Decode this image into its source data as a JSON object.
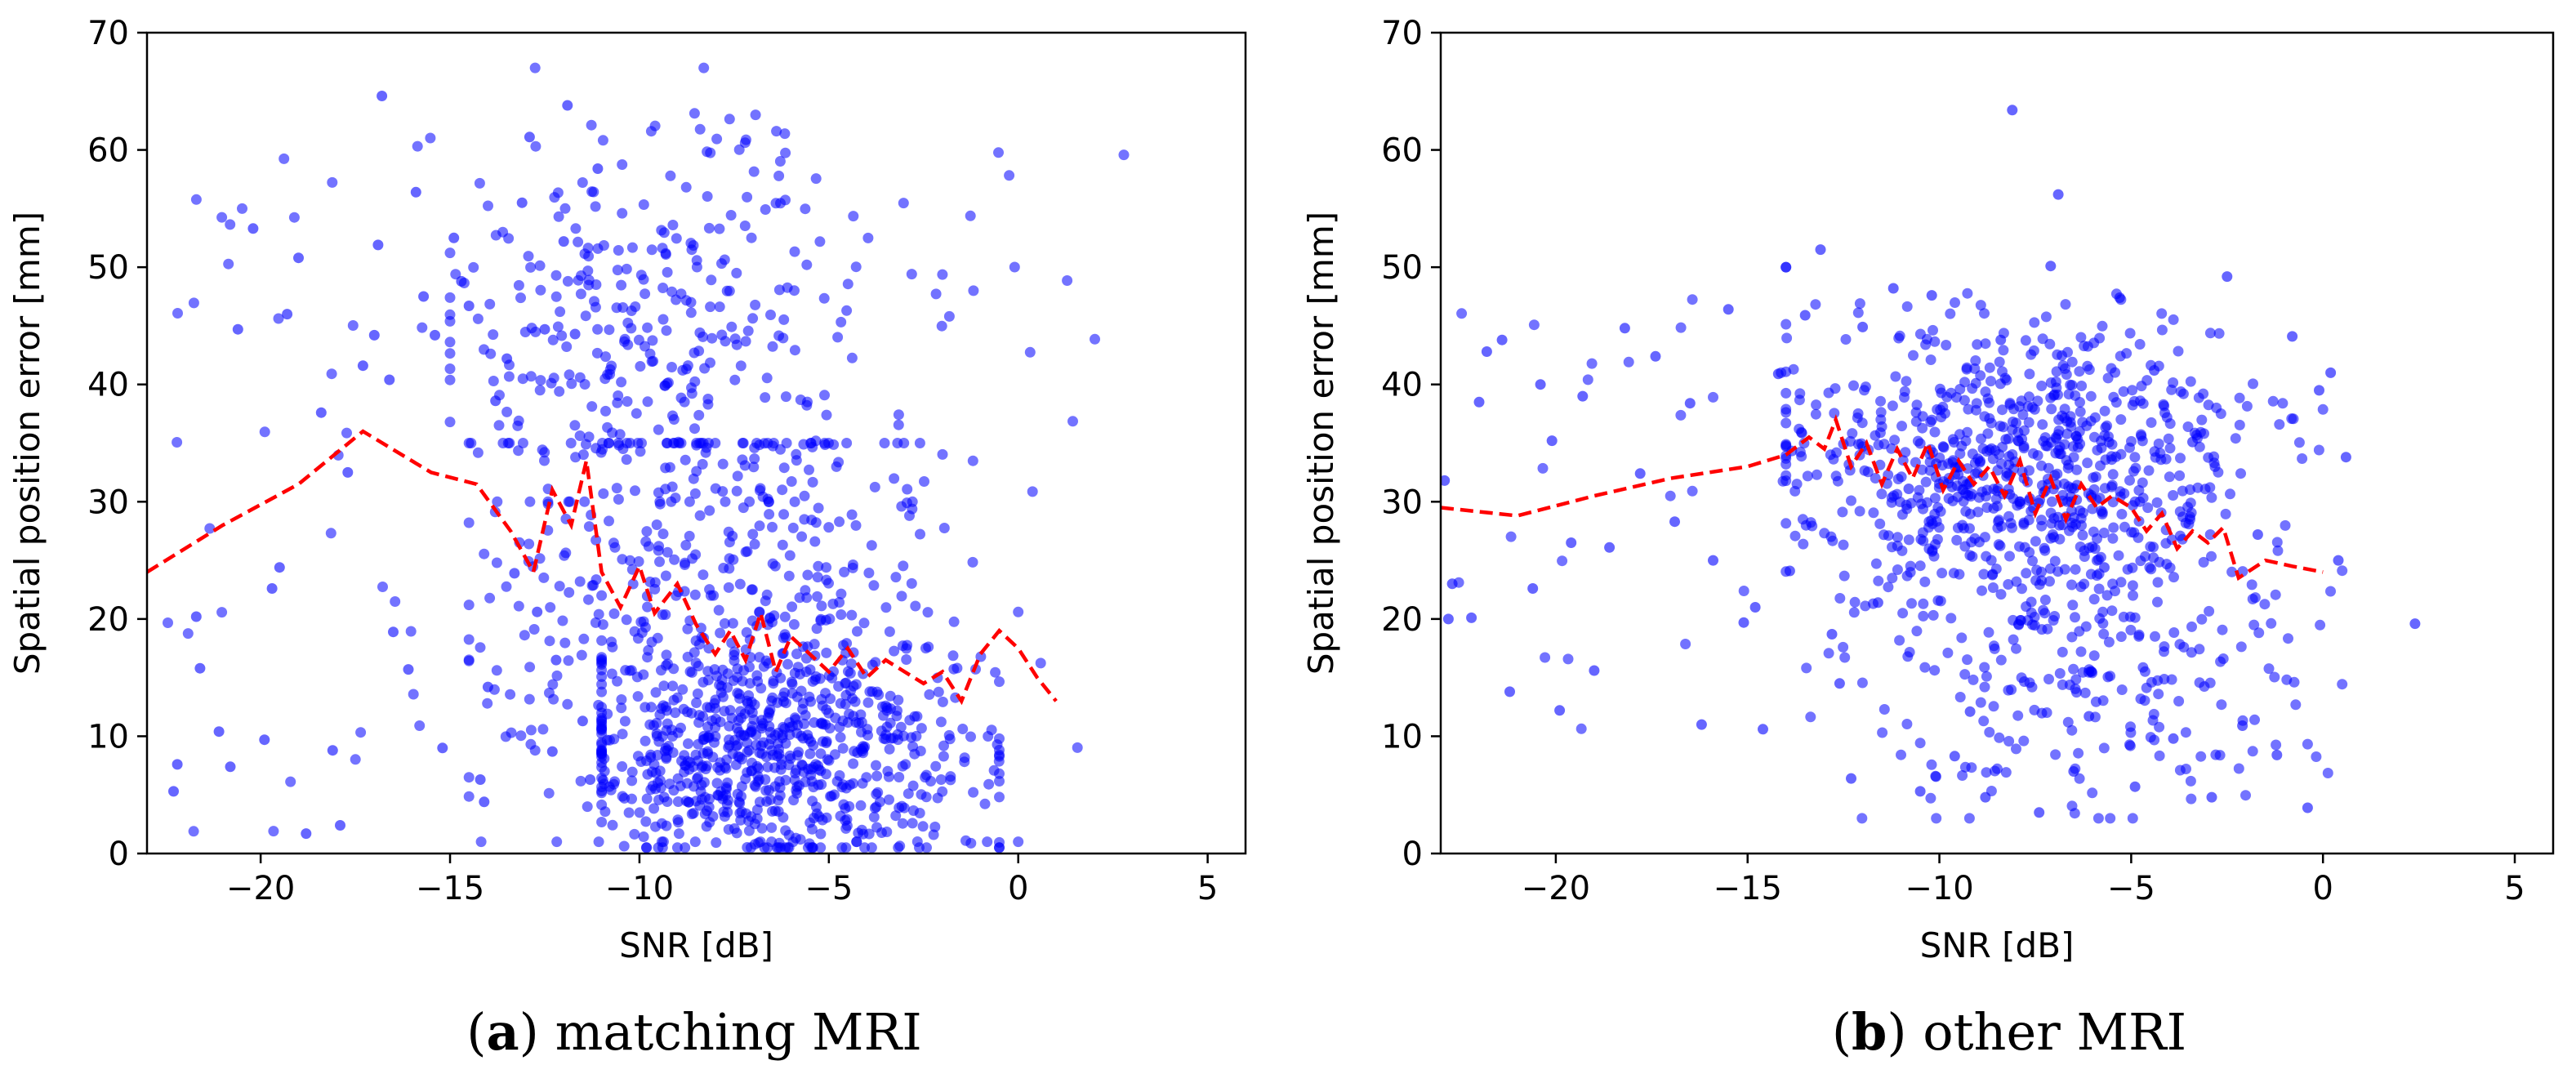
{
  "chart_data": [
    {
      "type": "scatter",
      "caption_letter": "a",
      "caption_text": "matching MRI",
      "xlabel": "SNR [dB]",
      "ylabel": "Spatial position error [mm]",
      "xlim": [
        -23,
        6
      ],
      "ylim": [
        0,
        70
      ],
      "xticks": [
        -20,
        -15,
        -10,
        -5,
        0,
        5
      ],
      "yticks": [
        0,
        10,
        20,
        30,
        40,
        50,
        60,
        70
      ],
      "xtick_labels": [
        "−20",
        "−15",
        "−10",
        "−5",
        "0",
        "5"
      ],
      "ytick_labels": [
        "0",
        "10",
        "20",
        "30",
        "40",
        "50",
        "60",
        "70"
      ],
      "point_color": "#0000ff",
      "trend_color": "#ff0000",
      "scatter_sample": [
        [
          -22.3,
          5.3
        ],
        [
          -22.2,
          7.6
        ],
        [
          -21.7,
          20.2
        ],
        [
          -21.6,
          15.8
        ],
        [
          -21.1,
          10.4
        ],
        [
          -20.8,
          7.4
        ],
        [
          -20.6,
          44.7
        ],
        [
          -20.2,
          53.3
        ],
        [
          -19.9,
          9.7
        ],
        [
          -19.7,
          22.6
        ],
        [
          -19.5,
          24.4
        ],
        [
          -19.3,
          46.0
        ],
        [
          -19.0,
          50.8
        ],
        [
          -18.8,
          1.7
        ],
        [
          -18.4,
          37.6
        ],
        [
          -18.1,
          8.8
        ],
        [
          -17.9,
          2.4
        ],
        [
          -17.7,
          32.5
        ],
        [
          -17.3,
          41.6
        ],
        [
          -17.0,
          44.2
        ],
        [
          -16.9,
          51.9
        ],
        [
          -16.8,
          64.6
        ],
        [
          -16.6,
          40.4
        ],
        [
          -16.5,
          18.9
        ],
        [
          -16.1,
          15.7
        ],
        [
          -15.9,
          56.4
        ],
        [
          -15.7,
          47.5
        ],
        [
          -15.4,
          44.2
        ],
        [
          -15.2,
          9.0
        ],
        [
          -14.9,
          52.5
        ],
        [
          -14.7,
          48.8
        ],
        [
          -14.5,
          46.7
        ],
        [
          -14.2,
          6.3
        ],
        [
          -14.1,
          4.4
        ],
        [
          -14.0,
          14.2
        ],
        [
          -13.8,
          38.6
        ],
        [
          -13.5,
          42.2
        ],
        [
          -13.3,
          23.9
        ],
        [
          -13.1,
          55.5
        ],
        [
          -12.9,
          61.1
        ],
        [
          -12.7,
          20.6
        ],
        [
          -12.5,
          44.7
        ],
        [
          -12.3,
          8.7
        ],
        [
          -12.2,
          16.5
        ],
        [
          -12.0,
          52.2
        ],
        [
          -11.9,
          63.8
        ],
        [
          -11.7,
          44.3
        ],
        [
          -11.5,
          11.3
        ],
        [
          -11.3,
          6.3
        ],
        [
          -11.1,
          58.4
        ]
      ],
      "trend_line": [
        [
          -23.0,
          24.0
        ],
        [
          -21.0,
          28.0
        ],
        [
          -19.0,
          31.5
        ],
        [
          -17.3,
          36.0
        ],
        [
          -15.5,
          32.5
        ],
        [
          -14.3,
          31.5
        ],
        [
          -13.4,
          27.5
        ],
        [
          -12.8,
          24.0
        ],
        [
          -12.3,
          31.0
        ],
        [
          -11.8,
          28.0
        ],
        [
          -11.4,
          33.5
        ],
        [
          -11.0,
          24.0
        ],
        [
          -10.5,
          21.0
        ],
        [
          -10.0,
          24.5
        ],
        [
          -9.6,
          20.5
        ],
        [
          -9.0,
          23.0
        ],
        [
          -8.5,
          19.5
        ],
        [
          -8.0,
          17.0
        ],
        [
          -7.6,
          19.0
        ],
        [
          -7.2,
          16.5
        ],
        [
          -6.8,
          20.5
        ],
        [
          -6.4,
          15.5
        ],
        [
          -6.0,
          18.5
        ],
        [
          -5.5,
          17.0
        ],
        [
          -5.0,
          15.5
        ],
        [
          -4.5,
          17.5
        ],
        [
          -4.0,
          15.0
        ],
        [
          -3.5,
          16.5
        ],
        [
          -3.0,
          15.5
        ],
        [
          -2.5,
          14.5
        ],
        [
          -2.0,
          15.5
        ],
        [
          -1.5,
          13.0
        ],
        [
          -1.0,
          17.0
        ],
        [
          -0.5,
          19.0
        ],
        [
          0.0,
          17.5
        ],
        [
          0.5,
          15.0
        ],
        [
          1.0,
          13.0
        ]
      ]
    },
    {
      "type": "scatter",
      "caption_letter": "b",
      "caption_text": "other MRI",
      "xlabel": "SNR [dB]",
      "ylabel": "Spatial position error [mm]",
      "xlim": [
        -23,
        6
      ],
      "ylim": [
        0,
        70
      ],
      "xticks": [
        -20,
        -15,
        -10,
        -5,
        0,
        5
      ],
      "yticks": [
        0,
        10,
        20,
        30,
        40,
        50,
        60,
        70
      ],
      "xtick_labels": [
        "−20",
        "−15",
        "−10",
        "−5",
        "0",
        "5"
      ],
      "ytick_labels": [
        "0",
        "10",
        "20",
        "30",
        "40",
        "50",
        "60",
        "70"
      ],
      "point_color": "#0000ff",
      "trend_color": "#ff0000",
      "scatter_sample": [
        [
          -22.9,
          31.8
        ],
        [
          -22.8,
          20.0
        ],
        [
          -22.7,
          23.0
        ],
        [
          -22.2,
          20.1
        ],
        [
          -22.0,
          38.5
        ],
        [
          -21.8,
          42.8
        ],
        [
          -21.4,
          43.8
        ],
        [
          -21.2,
          13.8
        ],
        [
          -20.6,
          22.6
        ],
        [
          -20.4,
          40.0
        ],
        [
          -20.1,
          35.2
        ],
        [
          -19.9,
          12.2
        ],
        [
          -19.6,
          26.5
        ],
        [
          -19.3,
          39.0
        ],
        [
          -19.0,
          15.6
        ],
        [
          -18.6,
          26.1
        ],
        [
          -18.2,
          44.8
        ],
        [
          -17.8,
          32.4
        ],
        [
          -17.4,
          42.4
        ],
        [
          -16.9,
          28.3
        ],
        [
          -16.5,
          38.4
        ],
        [
          -16.2,
          11.0
        ],
        [
          -15.9,
          25.0
        ],
        [
          -15.5,
          46.4
        ],
        [
          -15.1,
          19.7
        ],
        [
          -14.8,
          21.0
        ],
        [
          -14.6,
          10.6
        ],
        [
          -14.2,
          40.9
        ],
        [
          -13.9,
          24.1
        ],
        [
          -13.5,
          45.9
        ],
        [
          -13.1,
          51.5
        ],
        [
          -12.8,
          18.7
        ],
        [
          -12.6,
          14.5
        ],
        [
          -12.3,
          6.4
        ],
        [
          -12.0,
          44.9
        ],
        [
          -11.6,
          21.4
        ],
        [
          -11.2,
          48.2
        ],
        [
          -10.8,
          31.1
        ],
        [
          -10.5,
          5.3
        ],
        [
          -10.2,
          47.6
        ],
        [
          -9.9,
          34.7
        ],
        [
          -9.6,
          8.3
        ],
        [
          -9.2,
          12.1
        ],
        [
          -8.8,
          4.8
        ],
        [
          -8.4,
          43.8
        ],
        [
          -8.1,
          63.4
        ],
        [
          -7.8,
          28.2
        ],
        [
          -7.4,
          3.5
        ],
        [
          -7.1,
          50.1
        ],
        [
          -6.9,
          56.2
        ],
        [
          -6.5,
          7.0
        ],
        [
          -6.1,
          11.7
        ],
        [
          -5.7,
          24.4
        ],
        [
          -5.3,
          47.4
        ],
        [
          -4.9,
          5.7
        ],
        [
          -4.4,
          41.2
        ],
        [
          -3.9,
          9.8
        ],
        [
          -3.4,
          35.1
        ],
        [
          -2.9,
          4.8
        ],
        [
          -2.5,
          49.2
        ],
        [
          -2.1,
          10.9
        ],
        [
          -1.7,
          27.2
        ],
        [
          -1.2,
          8.4
        ],
        [
          -0.8,
          44.1
        ],
        [
          -0.4,
          3.9
        ],
        [
          -0.1,
          39.5
        ],
        [
          0.2,
          41.0
        ],
        [
          0.4,
          25.0
        ],
        [
          0.6,
          33.8
        ],
        [
          2.4,
          19.6
        ]
      ],
      "trend_line": [
        [
          -23.0,
          29.5
        ],
        [
          -21.0,
          28.8
        ],
        [
          -19.0,
          30.5
        ],
        [
          -17.0,
          32.0
        ],
        [
          -15.0,
          33.0
        ],
        [
          -14.0,
          34.0
        ],
        [
          -13.4,
          35.5
        ],
        [
          -13.0,
          34.5
        ],
        [
          -12.7,
          37.0
        ],
        [
          -12.3,
          33.0
        ],
        [
          -11.9,
          35.0
        ],
        [
          -11.5,
          31.5
        ],
        [
          -11.1,
          34.5
        ],
        [
          -10.7,
          32.0
        ],
        [
          -10.3,
          35.0
        ],
        [
          -9.9,
          31.0
        ],
        [
          -9.5,
          33.5
        ],
        [
          -9.1,
          31.5
        ],
        [
          -8.7,
          33.0
        ],
        [
          -8.3,
          30.5
        ],
        [
          -7.9,
          33.5
        ],
        [
          -7.5,
          29.0
        ],
        [
          -7.1,
          32.0
        ],
        [
          -6.7,
          28.5
        ],
        [
          -6.3,
          31.5
        ],
        [
          -5.9,
          29.5
        ],
        [
          -5.5,
          30.5
        ],
        [
          -5.0,
          29.5
        ],
        [
          -4.6,
          27.5
        ],
        [
          -4.2,
          29.0
        ],
        [
          -3.8,
          26.0
        ],
        [
          -3.4,
          27.5
        ],
        [
          -3.0,
          26.5
        ],
        [
          -2.6,
          27.8
        ],
        [
          -2.2,
          23.5
        ],
        [
          -1.5,
          25.0
        ],
        [
          -0.8,
          24.5
        ],
        [
          0.0,
          24.0
        ]
      ]
    }
  ]
}
